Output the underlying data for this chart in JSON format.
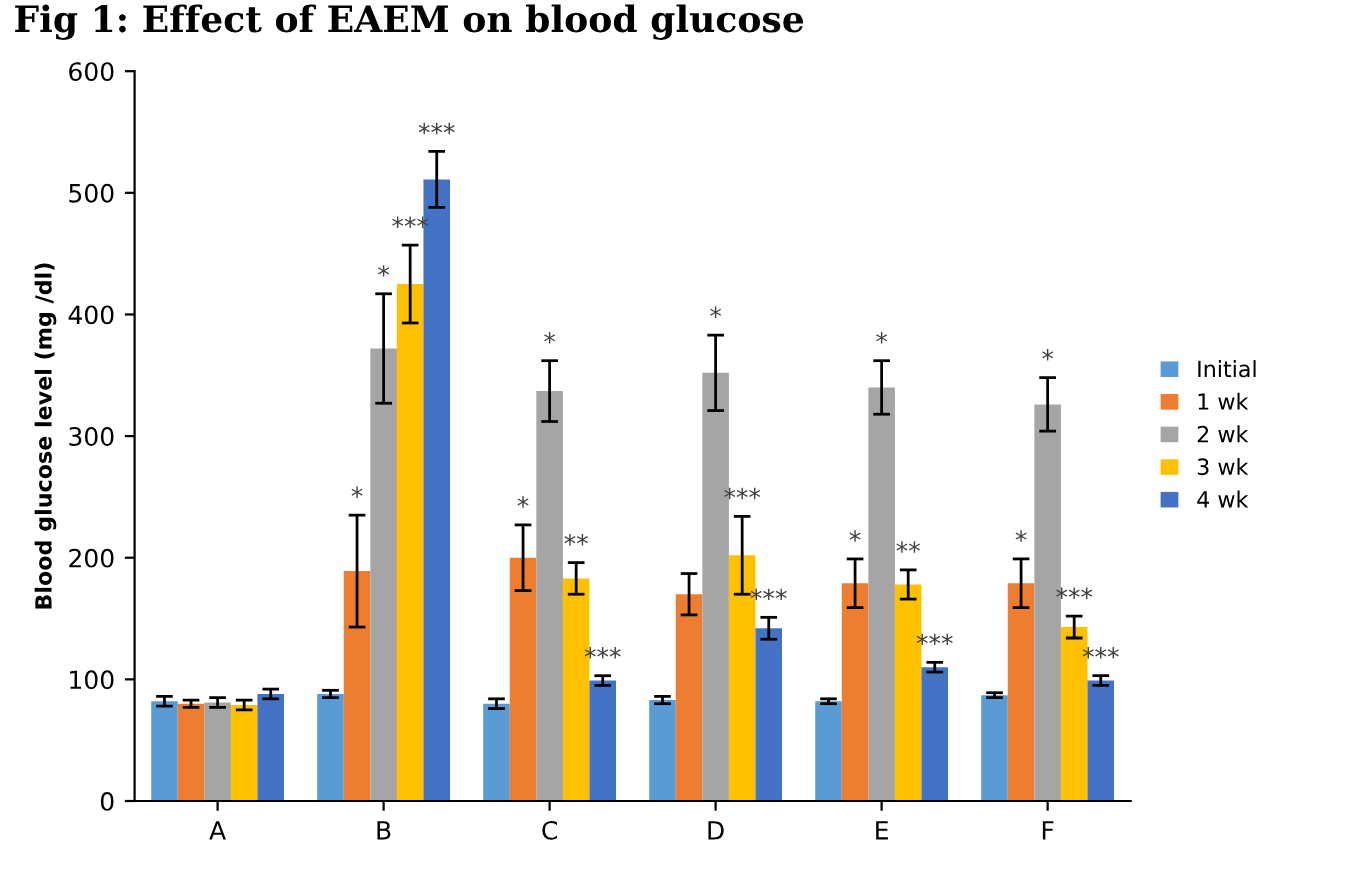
{
  "chart_data": {
    "type": "bar",
    "title": "Fig 1: Effect of EAEM on blood glucose",
    "ylabel": "Blood glucose level (mg /dl)",
    "categories": [
      "A",
      "B",
      "C",
      "D",
      "E",
      "F"
    ],
    "series": [
      {
        "name": "Initial",
        "color": "#5b9bd5",
        "values": [
          82,
          88,
          80,
          83,
          82,
          87
        ],
        "errors": [
          4,
          3,
          4,
          3,
          2,
          2
        ],
        "value_labels": [
          null,
          null,
          null,
          null,
          null,
          null
        ]
      },
      {
        "name": "1 wk",
        "color": "#ed7d31",
        "values": [
          80,
          189,
          200,
          170,
          179,
          179
        ],
        "errors": [
          3,
          46,
          27,
          17,
          20,
          20
        ],
        "value_labels": [
          null,
          "*",
          "*",
          null,
          "*",
          "*"
        ]
      },
      {
        "name": "2 wk",
        "color": "#a5a5a5",
        "values": [
          81,
          372,
          337,
          352,
          340,
          326
        ],
        "errors": [
          4,
          45,
          25,
          31,
          22,
          22
        ],
        "value_labels": [
          null,
          "*",
          "*",
          "*",
          "*",
          "*"
        ]
      },
      {
        "name": "3 wk",
        "color": "#ffc000",
        "values": [
          79,
          425,
          183,
          202,
          178,
          143
        ],
        "errors": [
          4,
          32,
          13,
          32,
          12,
          9
        ],
        "value_labels": [
          null,
          "***",
          "**",
          "***",
          "**",
          "***"
        ]
      },
      {
        "name": "4 wk",
        "color": "#4472c4",
        "values": [
          88,
          511,
          99,
          142,
          110,
          99
        ],
        "errors": [
          4,
          23,
          4,
          9,
          4,
          4
        ],
        "value_labels": [
          null,
          "***",
          "***",
          "***",
          "***",
          "***"
        ]
      }
    ],
    "ylim": [
      0,
      600
    ],
    "yticks": [
      0,
      100,
      200,
      300,
      400,
      500,
      600
    ],
    "grid": false,
    "legend": "right"
  }
}
